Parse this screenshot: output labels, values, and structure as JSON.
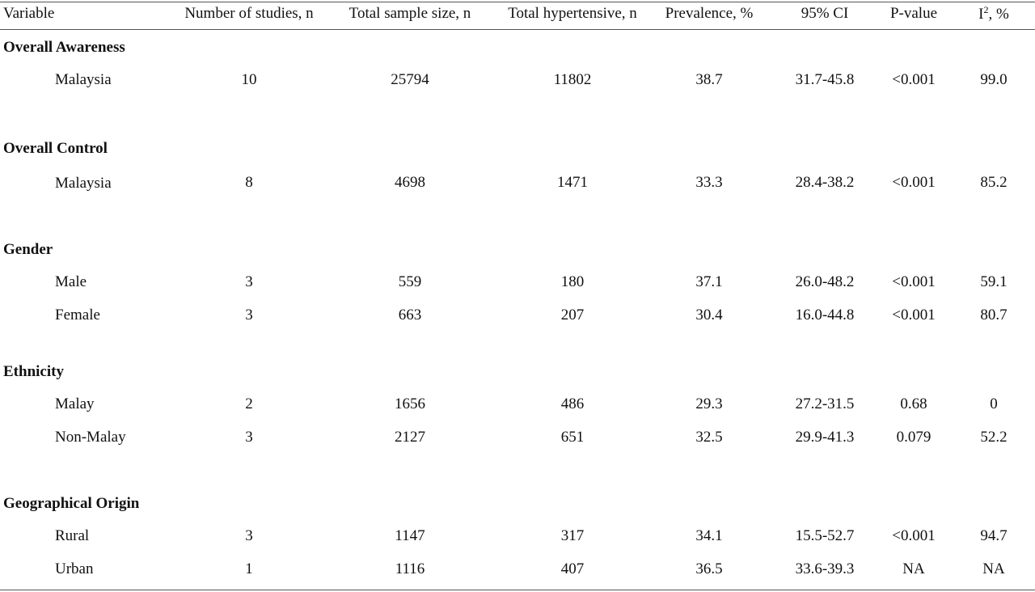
{
  "headers": [
    "Variable",
    "Number of studies, n",
    "Total sample size, n",
    "Total hypertensive, n",
    "Prevalence, %",
    "95% CI",
    "P-value",
    "I",
    "2",
    ", %"
  ],
  "sections": [
    {
      "title": "Overall Awareness",
      "rows": [
        [
          "Malaysia",
          "10",
          "25794",
          "11802",
          "38.7",
          "31.7-45.8",
          "<0.001",
          "99.0"
        ]
      ]
    },
    {
      "title": "Overall Control",
      "rows": [
        [
          "Malaysia",
          "8",
          "4698",
          "1471",
          "33.3",
          "28.4-38.2",
          "<0.001",
          "85.2"
        ]
      ]
    },
    {
      "title": "Gender",
      "rows": [
        [
          "Male",
          "3",
          "559",
          "180",
          "37.1",
          "26.0-48.2",
          "<0.001",
          "59.1"
        ],
        [
          "Female",
          "3",
          "663",
          "207",
          "30.4",
          "16.0-44.8",
          "<0.001",
          "80.7"
        ]
      ]
    },
    {
      "title": "Ethnicity",
      "rows": [
        [
          "Malay",
          "2",
          "1656",
          "486",
          "29.3",
          "27.2-31.5",
          "0.68",
          "0"
        ],
        [
          "Non-Malay",
          "3",
          "2127",
          "651",
          "32.5",
          "29.9-41.3",
          "0.079",
          "52.2"
        ]
      ]
    },
    {
      "title": "Geographical Origin",
      "rows": [
        [
          "Rural",
          "3",
          "1147",
          "317",
          "34.1",
          "15.5-52.7",
          "<0.001",
          "94.7"
        ],
        [
          "Urban",
          "1",
          "1116",
          "407",
          "36.5",
          "33.6-39.3",
          "NA",
          "NA"
        ]
      ]
    }
  ]
}
